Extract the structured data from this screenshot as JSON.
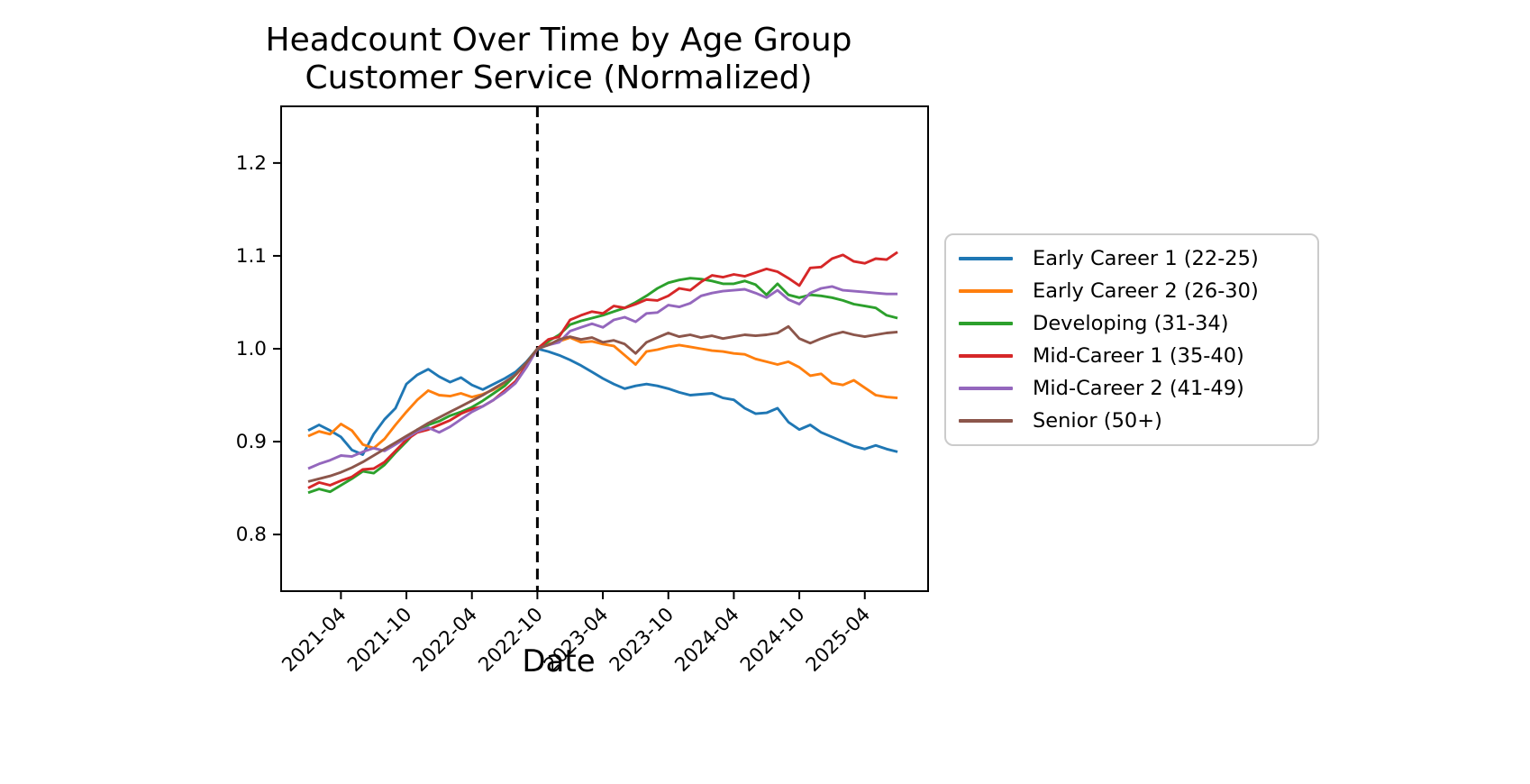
{
  "chart_data": {
    "type": "line",
    "title_lines": [
      "Headcount Over Time by Age Group",
      "Customer Service (Normalized)"
    ],
    "xlabel": "Date",
    "grid": false,
    "legend_position": "right-outside",
    "background": "#ffffff",
    "vline": {
      "index": 21,
      "date": "2022-10",
      "style": "dashed",
      "color": "#000000"
    },
    "ylim": [
      0.739,
      1.261
    ],
    "xlim_index": [
      -2.48,
      56.8
    ],
    "yticks": [
      0.8,
      0.9,
      1.0,
      1.1,
      1.2
    ],
    "ytick_labels": [
      "0.8",
      "0.9",
      "1.0",
      "1.1",
      "1.2"
    ],
    "xtick_indices": [
      3,
      9,
      15,
      21,
      27,
      33,
      39,
      45,
      51
    ],
    "xtick_labels": [
      "2021-04",
      "2021-10",
      "2022-04",
      "2022-10",
      "2023-04",
      "2023-10",
      "2024-04",
      "2024-10",
      "2025-04"
    ],
    "x": [
      "2021-01",
      "2021-02",
      "2021-03",
      "2021-04",
      "2021-05",
      "2021-06",
      "2021-07",
      "2021-08",
      "2021-09",
      "2021-10",
      "2021-11",
      "2021-12",
      "2022-01",
      "2022-02",
      "2022-03",
      "2022-04",
      "2022-05",
      "2022-06",
      "2022-07",
      "2022-08",
      "2022-09",
      "2022-10",
      "2022-11",
      "2022-12",
      "2023-01",
      "2023-02",
      "2023-03",
      "2023-04",
      "2023-05",
      "2023-06",
      "2023-07",
      "2023-08",
      "2023-09",
      "2023-10",
      "2023-11",
      "2023-12",
      "2024-01",
      "2024-02",
      "2024-03",
      "2024-04",
      "2024-05",
      "2024-06",
      "2024-07",
      "2024-08",
      "2024-09",
      "2024-10",
      "2024-11",
      "2024-12",
      "2025-01",
      "2025-02",
      "2025-03",
      "2025-04",
      "2025-05",
      "2025-06",
      "2025-07"
    ],
    "series": [
      {
        "name": "Early Career 1 (22-25)",
        "color": "#1f77b4",
        "values": [
          0.912,
          0.918,
          0.912,
          0.905,
          0.891,
          0.886,
          0.908,
          0.924,
          0.936,
          0.962,
          0.972,
          0.978,
          0.97,
          0.964,
          0.969,
          0.961,
          0.956,
          0.962,
          0.968,
          0.975,
          0.986,
          1.0,
          0.997,
          0.993,
          0.988,
          0.982,
          0.975,
          0.968,
          0.962,
          0.957,
          0.96,
          0.962,
          0.96,
          0.957,
          0.953,
          0.95,
          0.951,
          0.952,
          0.947,
          0.945,
          0.936,
          0.93,
          0.931,
          0.936,
          0.921,
          0.913,
          0.918,
          0.91,
          0.905,
          0.9,
          0.895,
          0.892,
          0.896,
          0.892,
          0.889
        ]
      },
      {
        "name": "Early Career 2 (26-30)",
        "color": "#ff7f0e",
        "values": [
          0.906,
          0.911,
          0.908,
          0.919,
          0.912,
          0.897,
          0.893,
          0.903,
          0.918,
          0.932,
          0.945,
          0.955,
          0.95,
          0.949,
          0.952,
          0.948,
          0.951,
          0.956,
          0.963,
          0.972,
          0.985,
          1.0,
          1.005,
          1.008,
          1.012,
          1.007,
          1.008,
          1.005,
          1.003,
          0.993,
          0.983,
          0.997,
          0.999,
          1.002,
          1.004,
          1.002,
          1.0,
          0.998,
          0.997,
          0.995,
          0.994,
          0.989,
          0.986,
          0.983,
          0.986,
          0.98,
          0.971,
          0.973,
          0.963,
          0.961,
          0.966,
          0.958,
          0.95,
          0.948,
          0.947
        ]
      },
      {
        "name": "Developing (31-34)",
        "color": "#2ca02c",
        "values": [
          0.845,
          0.849,
          0.846,
          0.853,
          0.86,
          0.868,
          0.866,
          0.875,
          0.888,
          0.9,
          0.913,
          0.918,
          0.922,
          0.928,
          0.932,
          0.937,
          0.944,
          0.952,
          0.96,
          0.972,
          0.985,
          1.0,
          1.008,
          1.015,
          1.026,
          1.03,
          1.033,
          1.036,
          1.04,
          1.044,
          1.05,
          1.057,
          1.065,
          1.071,
          1.074,
          1.076,
          1.075,
          1.073,
          1.07,
          1.07,
          1.073,
          1.069,
          1.058,
          1.07,
          1.058,
          1.055,
          1.058,
          1.057,
          1.055,
          1.052,
          1.048,
          1.046,
          1.044,
          1.036,
          1.033
        ]
      },
      {
        "name": "Mid-Career 1 (35-40)",
        "color": "#d62728",
        "values": [
          0.85,
          0.856,
          0.853,
          0.858,
          0.862,
          0.87,
          0.871,
          0.878,
          0.89,
          0.902,
          0.91,
          0.913,
          0.918,
          0.923,
          0.93,
          0.935,
          0.938,
          0.945,
          0.955,
          0.965,
          0.982,
          1.0,
          1.01,
          1.013,
          1.031,
          1.036,
          1.04,
          1.038,
          1.046,
          1.044,
          1.048,
          1.053,
          1.052,
          1.057,
          1.065,
          1.063,
          1.072,
          1.079,
          1.077,
          1.08,
          1.078,
          1.082,
          1.086,
          1.083,
          1.076,
          1.068,
          1.087,
          1.088,
          1.097,
          1.101,
          1.094,
          1.092,
          1.097,
          1.096,
          1.104
        ]
      },
      {
        "name": "Mid-Career 2 (41-49)",
        "color": "#9467bd",
        "values": [
          0.871,
          0.876,
          0.88,
          0.885,
          0.884,
          0.889,
          0.893,
          0.89,
          0.897,
          0.904,
          0.911,
          0.915,
          0.91,
          0.916,
          0.924,
          0.932,
          0.938,
          0.945,
          0.953,
          0.963,
          0.98,
          1.0,
          1.004,
          1.007,
          1.019,
          1.023,
          1.027,
          1.023,
          1.031,
          1.034,
          1.029,
          1.038,
          1.039,
          1.047,
          1.045,
          1.049,
          1.057,
          1.06,
          1.062,
          1.063,
          1.064,
          1.06,
          1.055,
          1.063,
          1.053,
          1.048,
          1.06,
          1.065,
          1.067,
          1.063,
          1.062,
          1.061,
          1.06,
          1.059,
          1.059
        ]
      },
      {
        "name": "Senior (50+)",
        "color": "#8c564b",
        "values": [
          0.857,
          0.86,
          0.863,
          0.867,
          0.872,
          0.878,
          0.885,
          0.892,
          0.899,
          0.906,
          0.913,
          0.92,
          0.926,
          0.932,
          0.938,
          0.944,
          0.95,
          0.957,
          0.964,
          0.972,
          0.985,
          1.0,
          1.004,
          1.01,
          1.013,
          1.01,
          1.012,
          1.007,
          1.009,
          1.005,
          0.995,
          1.007,
          1.012,
          1.017,
          1.013,
          1.015,
          1.012,
          1.014,
          1.011,
          1.013,
          1.015,
          1.014,
          1.015,
          1.017,
          1.024,
          1.011,
          1.006,
          1.011,
          1.015,
          1.018,
          1.015,
          1.013,
          1.015,
          1.017,
          1.018
        ]
      }
    ]
  }
}
